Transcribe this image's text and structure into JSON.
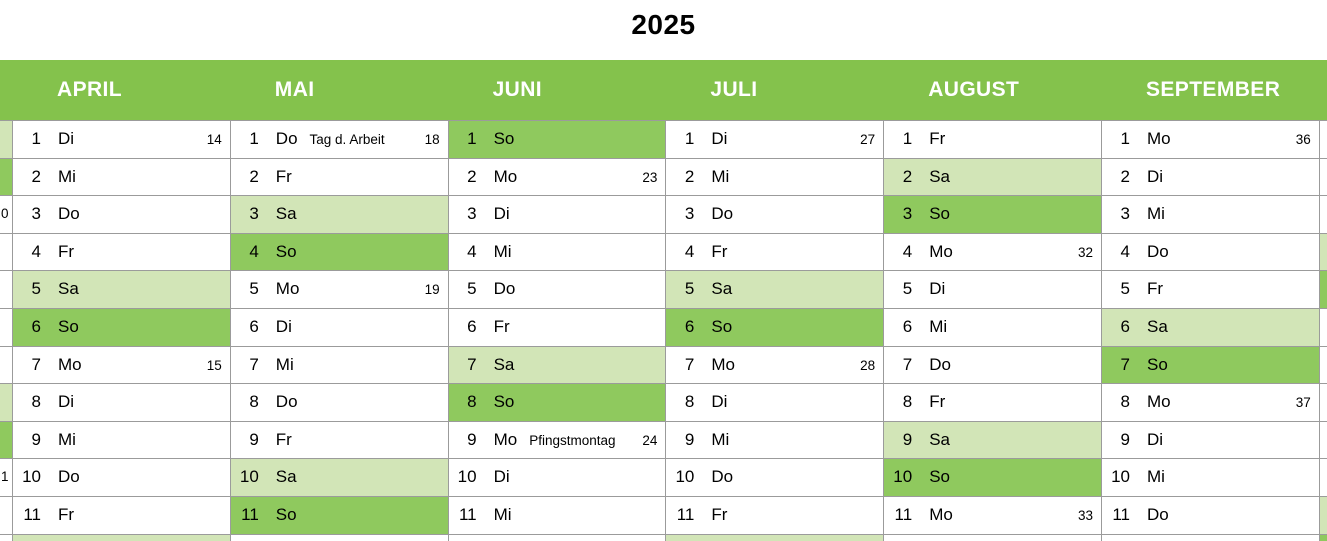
{
  "title": "2025",
  "colors": {
    "header_green": "#84C24C",
    "sunday_green": "#8FC95E",
    "saturday_green": "#D2E5B7",
    "grid_line": "#9B9B9B",
    "month_name_text": "#FFFFFF",
    "day_text": "#000000"
  },
  "left_partial_column": {
    "rows": [
      {
        "type": "sa"
      },
      {
        "type": "so"
      },
      {
        "type": "wd",
        "week_digit": "0"
      },
      {
        "type": "wd"
      },
      {
        "type": "wd"
      },
      {
        "type": "wd"
      },
      {
        "type": "wd"
      },
      {
        "type": "sa"
      },
      {
        "type": "so"
      },
      {
        "type": "wd",
        "week_digit": "1"
      },
      {
        "type": "wd"
      }
    ],
    "partial_row_type": "wd"
  },
  "months": [
    {
      "name": "APRIL",
      "days": [
        {
          "day": "1",
          "weekday": "Di",
          "week": "14",
          "type": "wd"
        },
        {
          "day": "2",
          "weekday": "Mi",
          "type": "wd"
        },
        {
          "day": "3",
          "weekday": "Do",
          "type": "wd"
        },
        {
          "day": "4",
          "weekday": "Fr",
          "type": "wd"
        },
        {
          "day": "5",
          "weekday": "Sa",
          "type": "sa"
        },
        {
          "day": "6",
          "weekday": "So",
          "type": "so"
        },
        {
          "day": "7",
          "weekday": "Mo",
          "week": "15",
          "type": "wd"
        },
        {
          "day": "8",
          "weekday": "Di",
          "type": "wd"
        },
        {
          "day": "9",
          "weekday": "Mi",
          "type": "wd"
        },
        {
          "day": "10",
          "weekday": "Do",
          "type": "wd"
        },
        {
          "day": "11",
          "weekday": "Fr",
          "type": "wd"
        }
      ],
      "partial_row_type": "sa"
    },
    {
      "name": "MAI",
      "days": [
        {
          "day": "1",
          "weekday": "Do",
          "note": "Tag d. Arbeit",
          "week": "18",
          "type": "wd"
        },
        {
          "day": "2",
          "weekday": "Fr",
          "type": "wd"
        },
        {
          "day": "3",
          "weekday": "Sa",
          "type": "sa"
        },
        {
          "day": "4",
          "weekday": "So",
          "type": "so"
        },
        {
          "day": "5",
          "weekday": "Mo",
          "week": "19",
          "type": "wd"
        },
        {
          "day": "6",
          "weekday": "Di",
          "type": "wd"
        },
        {
          "day": "7",
          "weekday": "Mi",
          "type": "wd"
        },
        {
          "day": "8",
          "weekday": "Do",
          "type": "wd"
        },
        {
          "day": "9",
          "weekday": "Fr",
          "type": "wd"
        },
        {
          "day": "10",
          "weekday": "Sa",
          "type": "sa"
        },
        {
          "day": "11",
          "weekday": "So",
          "type": "so"
        }
      ],
      "partial_row_type": "wd"
    },
    {
      "name": "JUNI",
      "days": [
        {
          "day": "1",
          "weekday": "So",
          "type": "so"
        },
        {
          "day": "2",
          "weekday": "Mo",
          "week": "23",
          "type": "wd"
        },
        {
          "day": "3",
          "weekday": "Di",
          "type": "wd"
        },
        {
          "day": "4",
          "weekday": "Mi",
          "type": "wd"
        },
        {
          "day": "5",
          "weekday": "Do",
          "type": "wd"
        },
        {
          "day": "6",
          "weekday": "Fr",
          "type": "wd"
        },
        {
          "day": "7",
          "weekday": "Sa",
          "type": "sa"
        },
        {
          "day": "8",
          "weekday": "So",
          "type": "so"
        },
        {
          "day": "9",
          "weekday": "Mo",
          "note": "Pfingstmontag",
          "week": "24",
          "type": "wd"
        },
        {
          "day": "10",
          "weekday": "Di",
          "type": "wd"
        },
        {
          "day": "11",
          "weekday": "Mi",
          "type": "wd"
        }
      ],
      "partial_row_type": "wd"
    },
    {
      "name": "JULI",
      "days": [
        {
          "day": "1",
          "weekday": "Di",
          "week": "27",
          "type": "wd"
        },
        {
          "day": "2",
          "weekday": "Mi",
          "type": "wd"
        },
        {
          "day": "3",
          "weekday": "Do",
          "type": "wd"
        },
        {
          "day": "4",
          "weekday": "Fr",
          "type": "wd"
        },
        {
          "day": "5",
          "weekday": "Sa",
          "type": "sa"
        },
        {
          "day": "6",
          "weekday": "So",
          "type": "so"
        },
        {
          "day": "7",
          "weekday": "Mo",
          "week": "28",
          "type": "wd"
        },
        {
          "day": "8",
          "weekday": "Di",
          "type": "wd"
        },
        {
          "day": "9",
          "weekday": "Mi",
          "type": "wd"
        },
        {
          "day": "10",
          "weekday": "Do",
          "type": "wd"
        },
        {
          "day": "11",
          "weekday": "Fr",
          "type": "wd"
        }
      ],
      "partial_row_type": "sa"
    },
    {
      "name": "AUGUST",
      "days": [
        {
          "day": "1",
          "weekday": "Fr",
          "type": "wd"
        },
        {
          "day": "2",
          "weekday": "Sa",
          "type": "sa"
        },
        {
          "day": "3",
          "weekday": "So",
          "type": "so"
        },
        {
          "day": "4",
          "weekday": "Mo",
          "week": "32",
          "type": "wd"
        },
        {
          "day": "5",
          "weekday": "Di",
          "type": "wd"
        },
        {
          "day": "6",
          "weekday": "Mi",
          "type": "wd"
        },
        {
          "day": "7",
          "weekday": "Do",
          "type": "wd"
        },
        {
          "day": "8",
          "weekday": "Fr",
          "type": "wd"
        },
        {
          "day": "9",
          "weekday": "Sa",
          "type": "sa"
        },
        {
          "day": "10",
          "weekday": "So",
          "type": "so"
        },
        {
          "day": "11",
          "weekday": "Mo",
          "week": "33",
          "type": "wd"
        }
      ],
      "partial_row_type": "wd"
    },
    {
      "name": "SEPTEMBER",
      "days": [
        {
          "day": "1",
          "weekday": "Mo",
          "week": "36",
          "type": "wd"
        },
        {
          "day": "2",
          "weekday": "Di",
          "type": "wd"
        },
        {
          "day": "3",
          "weekday": "Mi",
          "type": "wd"
        },
        {
          "day": "4",
          "weekday": "Do",
          "type": "wd"
        },
        {
          "day": "5",
          "weekday": "Fr",
          "type": "wd"
        },
        {
          "day": "6",
          "weekday": "Sa",
          "type": "sa"
        },
        {
          "day": "7",
          "weekday": "So",
          "type": "so"
        },
        {
          "day": "8",
          "weekday": "Mo",
          "week": "37",
          "type": "wd"
        },
        {
          "day": "9",
          "weekday": "Di",
          "type": "wd"
        },
        {
          "day": "10",
          "weekday": "Mi",
          "type": "wd"
        },
        {
          "day": "11",
          "weekday": "Do",
          "type": "wd"
        }
      ],
      "partial_row_type": "wd"
    }
  ],
  "right_partial_column": {
    "rows": [
      {
        "type": "wd"
      },
      {
        "type": "wd"
      },
      {
        "type": "wd"
      },
      {
        "type": "sa"
      },
      {
        "type": "so"
      },
      {
        "type": "wd"
      },
      {
        "type": "wd"
      },
      {
        "type": "wd"
      },
      {
        "type": "wd"
      },
      {
        "type": "wd"
      },
      {
        "type": "sa"
      }
    ],
    "partial_row_type": "so"
  }
}
